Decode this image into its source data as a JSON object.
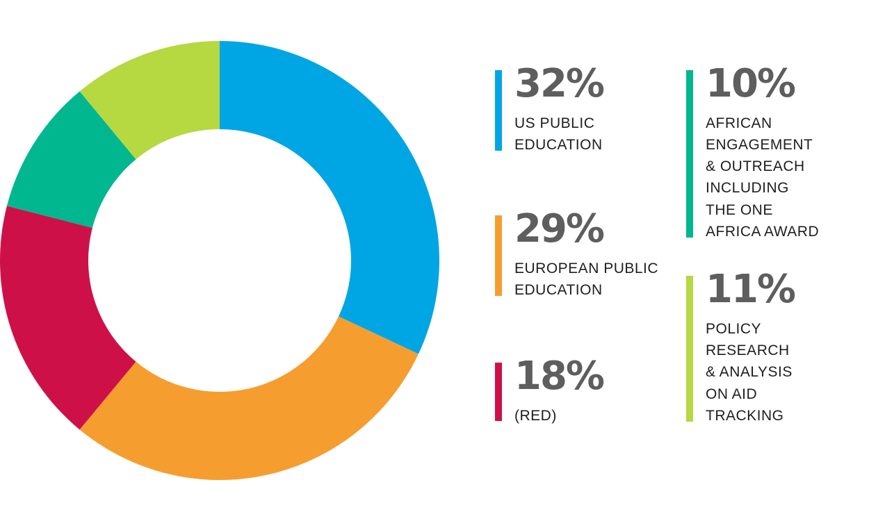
{
  "chart_data": {
    "type": "pie",
    "variant": "donut",
    "slices": [
      {
        "value": 32,
        "percent_label": "32%",
        "label_lines": [
          "US PUBLIC",
          "EDUCATION"
        ],
        "color": "#00a6e3"
      },
      {
        "value": 29,
        "percent_label": "29%",
        "label_lines": [
          "EUROPEAN PUBLIC",
          "EDUCATION"
        ],
        "color": "#f59e2f"
      },
      {
        "value": 18,
        "percent_label": "18%",
        "label_lines": [
          "(RED)"
        ],
        "color": "#cd1148"
      },
      {
        "value": 10,
        "percent_label": "10%",
        "label_lines": [
          "AFRICAN",
          "ENGAGEMENT",
          "& OUTREACH",
          "INCLUDING",
          "THE ONE",
          "AFRICA AWARD"
        ],
        "color": "#00b78f"
      },
      {
        "value": 11,
        "percent_label": "11%",
        "label_lines": [
          "POLICY",
          "RESEARCH",
          "& ANALYSIS",
          "ON AID",
          "TRACKING"
        ],
        "color": "#b6d841"
      }
    ],
    "start_angle": "12 o'clock",
    "direction": "clockwise",
    "legend_position": "right"
  },
  "colors": {
    "percent_text": "#5e5e5e",
    "label_text": "#1e1e1e",
    "background": "#ffffff"
  }
}
